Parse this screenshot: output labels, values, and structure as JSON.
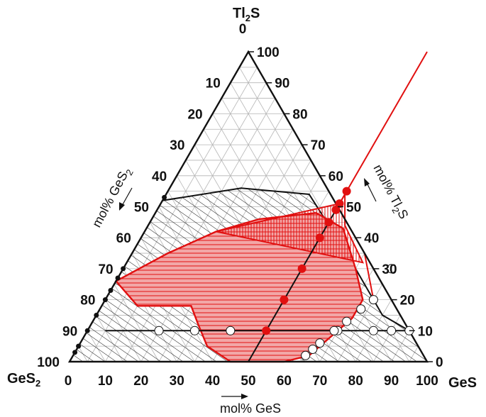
{
  "vertices": {
    "top": {
      "main": "Tl",
      "sub": "2",
      "tail": "S"
    },
    "left": {
      "main": "GeS",
      "sub": "2"
    },
    "right": {
      "main": "GeS"
    }
  },
  "axes": {
    "bottom_title": "mol% GeS",
    "left_title": {
      "main": "mol% GeS",
      "sub": "2"
    },
    "right_title": {
      "main": "mol% Tl",
      "sub": "2",
      "tail": "S"
    }
  },
  "ticks": {
    "bottom": [
      "0",
      "10",
      "20",
      "30",
      "40",
      "50",
      "60",
      "70",
      "80",
      "90",
      "100"
    ],
    "right": [
      "0",
      "10",
      "20",
      "30",
      "40",
      "50",
      "60",
      "70",
      "80",
      "90",
      "100"
    ],
    "left": [
      "0",
      "10",
      "20",
      "30",
      "40",
      "50",
      "60",
      "70",
      "80",
      "90",
      "100"
    ]
  },
  "colors": {
    "black": "#111111",
    "red": "#e11010",
    "red_fill": "#f2a7a7",
    "grid": "#b5b5b5"
  },
  "chart_data": {
    "type": "ternary",
    "components": [
      "GeS",
      "Tl2S",
      "GeS2"
    ],
    "grid_step": 5,
    "sections": [
      {
        "fixed": "Tl2S",
        "value": 10,
        "from": {
          "GeS": 5,
          "GeS2": 85
        },
        "to": {
          "GeS": 90,
          "GeS2": 0
        }
      },
      {
        "fixed": "GeS",
        "value": 50,
        "from": {
          "Tl2S": 0
        },
        "to": {
          "Tl2S": 100
        }
      }
    ],
    "points_open": [
      {
        "GeS": 20,
        "Tl2S": 10
      },
      {
        "GeS": 30,
        "Tl2S": 10
      },
      {
        "GeS": 40,
        "Tl2S": 10
      },
      {
        "GeS": 70,
        "Tl2S": 10
      },
      {
        "GeS": 80,
        "Tl2S": 10
      },
      {
        "GeS": 85,
        "Tl2S": 10
      },
      {
        "GeS": 90,
        "Tl2S": 10
      },
      {
        "GeS": 75,
        "Tl2S": 30
      },
      {
        "GeS": 75,
        "Tl2S": 20
      },
      {
        "GeS": 73,
        "Tl2S": 17
      },
      {
        "GeS": 71,
        "Tl2S": 13
      },
      {
        "GeS": 69,
        "Tl2S": 10
      },
      {
        "GeS": 67,
        "Tl2S": 6
      },
      {
        "GeS": 66,
        "Tl2S": 4
      },
      {
        "GeS": 65,
        "Tl2S": 2
      }
    ],
    "points_filled_red": [
      {
        "GeS": 50,
        "Tl2S": 55
      },
      {
        "GeS": 50,
        "Tl2S": 51
      },
      {
        "GeS": 50,
        "Tl2S": 49
      },
      {
        "GeS": 50,
        "Tl2S": 45
      },
      {
        "GeS": 50,
        "Tl2S": 40
      },
      {
        "GeS": 50,
        "Tl2S": 30
      },
      {
        "GeS": 50,
        "Tl2S": 20
      },
      {
        "GeS": 50,
        "Tl2S": 10
      }
    ],
    "points_filled_black": [
      {
        "GeS": 0,
        "Tl2S": 53
      },
      {
        "GeS": 0,
        "Tl2S": 30
      },
      {
        "GeS": 0,
        "Tl2S": 27
      },
      {
        "GeS": 0,
        "Tl2S": 23
      },
      {
        "GeS": 0,
        "Tl2S": 20
      },
      {
        "GeS": 0,
        "Tl2S": 15
      },
      {
        "GeS": 0,
        "Tl2S": 10
      },
      {
        "GeS": 0,
        "Tl2S": 5
      },
      {
        "GeS": 0,
        "Tl2S": 3
      }
    ],
    "glass_region_boundary": [
      {
        "GeS": 0,
        "Tl2S": 52
      },
      {
        "GeS": 20,
        "Tl2S": 56
      },
      {
        "GeS": 40,
        "Tl2S": 54
      },
      {
        "GeS": 60,
        "Tl2S": 35
      },
      {
        "GeS": 75,
        "Tl2S": 20
      },
      {
        "GeS": 80,
        "Tl2S": 15
      },
      {
        "GeS": 90,
        "Tl2S": 10
      }
    ],
    "red_region_boundary": [
      {
        "GeS": 0,
        "Tl2S": 26
      },
      {
        "GeS": 10,
        "Tl2S": 35
      },
      {
        "GeS": 20,
        "Tl2S": 42
      },
      {
        "GeS": 30,
        "Tl2S": 46
      },
      {
        "GeS": 45,
        "Tl2S": 48
      },
      {
        "GeS": 55,
        "Tl2S": 43
      },
      {
        "GeS": 65,
        "Tl2S": 30
      },
      {
        "GeS": 72,
        "Tl2S": 20
      },
      {
        "GeS": 72,
        "Tl2S": 14
      },
      {
        "GeS": 66,
        "Tl2S": 2
      },
      {
        "GeS": 60,
        "Tl2S": 0
      },
      {
        "GeS": 45,
        "Tl2S": 0
      },
      {
        "GeS": 36,
        "Tl2S": 5
      },
      {
        "GeS": 30,
        "Tl2S": 12
      },
      {
        "GeS": 25,
        "Tl2S": 18
      },
      {
        "GeS": 10,
        "Tl2S": 18
      }
    ],
    "vertical_hatch_region": [
      {
        "GeS": 20,
        "Tl2S": 42
      },
      {
        "GeS": 40,
        "Tl2S": 48
      },
      {
        "GeS": 50,
        "Tl2S": 51
      },
      {
        "GeS": 50,
        "Tl2S": 54
      },
      {
        "GeS": 55,
        "Tl2S": 44
      },
      {
        "GeS": 66,
        "Tl2S": 32
      }
    ],
    "tie_line": {
      "from": {
        "GeS": 75,
        "Tl2S": 20
      },
      "to": {
        "GeS": 65,
        "Tl2S": 35
      }
    }
  }
}
